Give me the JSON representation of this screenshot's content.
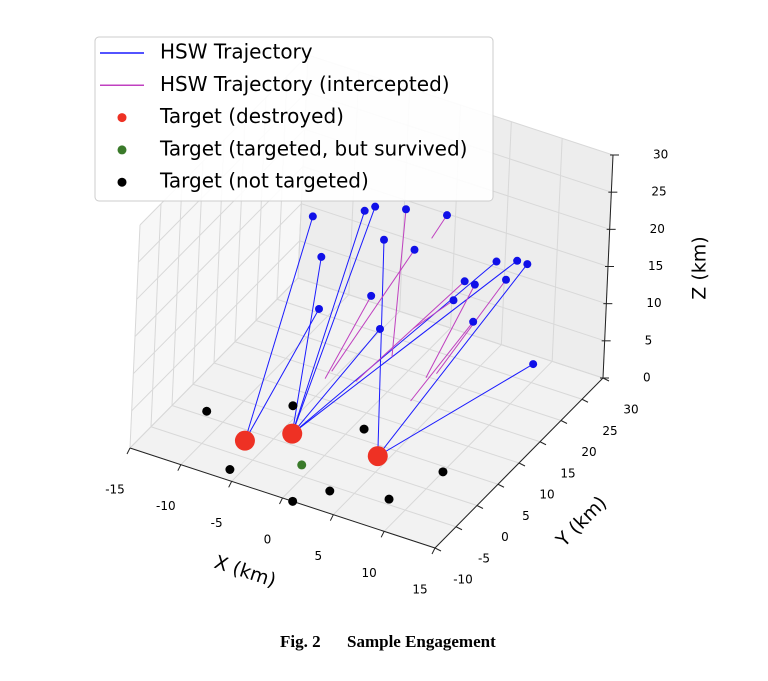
{
  "chart_data": {
    "type": "scatter3d",
    "xlabel": "X (km)",
    "ylabel": "Y (km)",
    "zlabel": "Z (km)",
    "xlim": [
      -15,
      15
    ],
    "ylim": [
      -10,
      30
    ],
    "zlim": [
      0,
      30
    ],
    "xticks": [
      -15,
      -10,
      -5,
      0,
      5,
      10,
      15
    ],
    "yticks": [
      -10,
      -5,
      0,
      5,
      10,
      15,
      20,
      25,
      30
    ],
    "zticks": [
      0,
      5,
      10,
      15,
      20,
      25,
      30
    ],
    "grid": true,
    "legend": "upper left",
    "series": [
      {
        "name": "HSW Trajectory",
        "mode": "line",
        "color": "#1a1aff",
        "marker_color": "#1010e8",
        "x": [
          -8,
          -7,
          null,
          -3,
          -4,
          null,
          -2,
          -4,
          null,
          -7,
          -4,
          null,
          -7,
          -7,
          null,
          -1,
          4,
          null,
          10,
          -4,
          null,
          12,
          -4,
          null,
          14,
          4,
          null,
          -1,
          -4,
          null,
          13,
          4
        ],
        "y": [
          15,
          -2,
          null,
          15,
          2,
          null,
          15,
          2,
          null,
          15,
          2,
          null,
          15,
          -2,
          null,
          15,
          3,
          null,
          15,
          2,
          null,
          15,
          2,
          null,
          15,
          3,
          null,
          15,
          2,
          null,
          15,
          3
        ],
        "z": [
          20,
          0,
          null,
          23,
          0,
          null,
          24,
          0,
          null,
          15,
          0,
          null,
          8,
          0,
          null,
          20,
          0,
          null,
          22,
          0,
          null,
          23,
          0,
          null,
          10,
          0,
          null,
          8,
          0,
          null,
          23,
          0
        ]
      },
      {
        "name": "HSW Trajectory (intercepted)",
        "mode": "line",
        "color": "#c040c0",
        "marker_color": "#1010e8",
        "x": [
          1,
          3,
          null,
          2,
          -2,
          null,
          5,
          4,
          null,
          7,
          0,
          null,
          6,
          3,
          null,
          8,
          6,
          null,
          11,
          7,
          null,
          8,
          5,
          null,
          -2,
          -3
        ],
        "y": [
          15,
          8,
          null,
          15,
          6,
          null,
          15,
          14,
          null,
          15,
          7,
          null,
          15,
          13,
          null,
          15,
          9,
          null,
          15,
          9,
          null,
          15,
          8,
          null,
          15,
          7
        ],
        "z": [
          25,
          10,
          null,
          20,
          7,
          null,
          26,
          23,
          null,
          18,
          6,
          null,
          15,
          11,
          null,
          18,
          8,
          null,
          20,
          9,
          null,
          13,
          5,
          null,
          12,
          5
        ]
      },
      {
        "name": "Target (destroyed)",
        "mode": "point",
        "color": "#ee3124",
        "marker_size": 10,
        "x": [
          -7,
          -4,
          4
        ],
        "y": [
          -2,
          2,
          3
        ],
        "z": [
          0,
          0,
          0
        ]
      },
      {
        "name": "Target (targeted, but survived)",
        "mode": "point",
        "color": "#3a7a2a",
        "marker_size": 4.5,
        "x": [
          -1
        ],
        "y": [
          -3
        ],
        "z": [
          0
        ]
      },
      {
        "name": "Target (not targeted)",
        "mode": "point",
        "color": "#000000",
        "marker_size": 4.5,
        "x": [
          -12,
          -6,
          1,
          -6,
          3,
          1,
          8,
          10
        ],
        "y": [
          1,
          7,
          7,
          -8,
          -6,
          -10,
          -4,
          4
        ],
        "z": [
          0,
          0,
          0,
          0,
          0,
          0,
          0,
          0
        ]
      }
    ]
  },
  "caption": {
    "label": "Fig. 2",
    "text": "Sample Engagement"
  }
}
